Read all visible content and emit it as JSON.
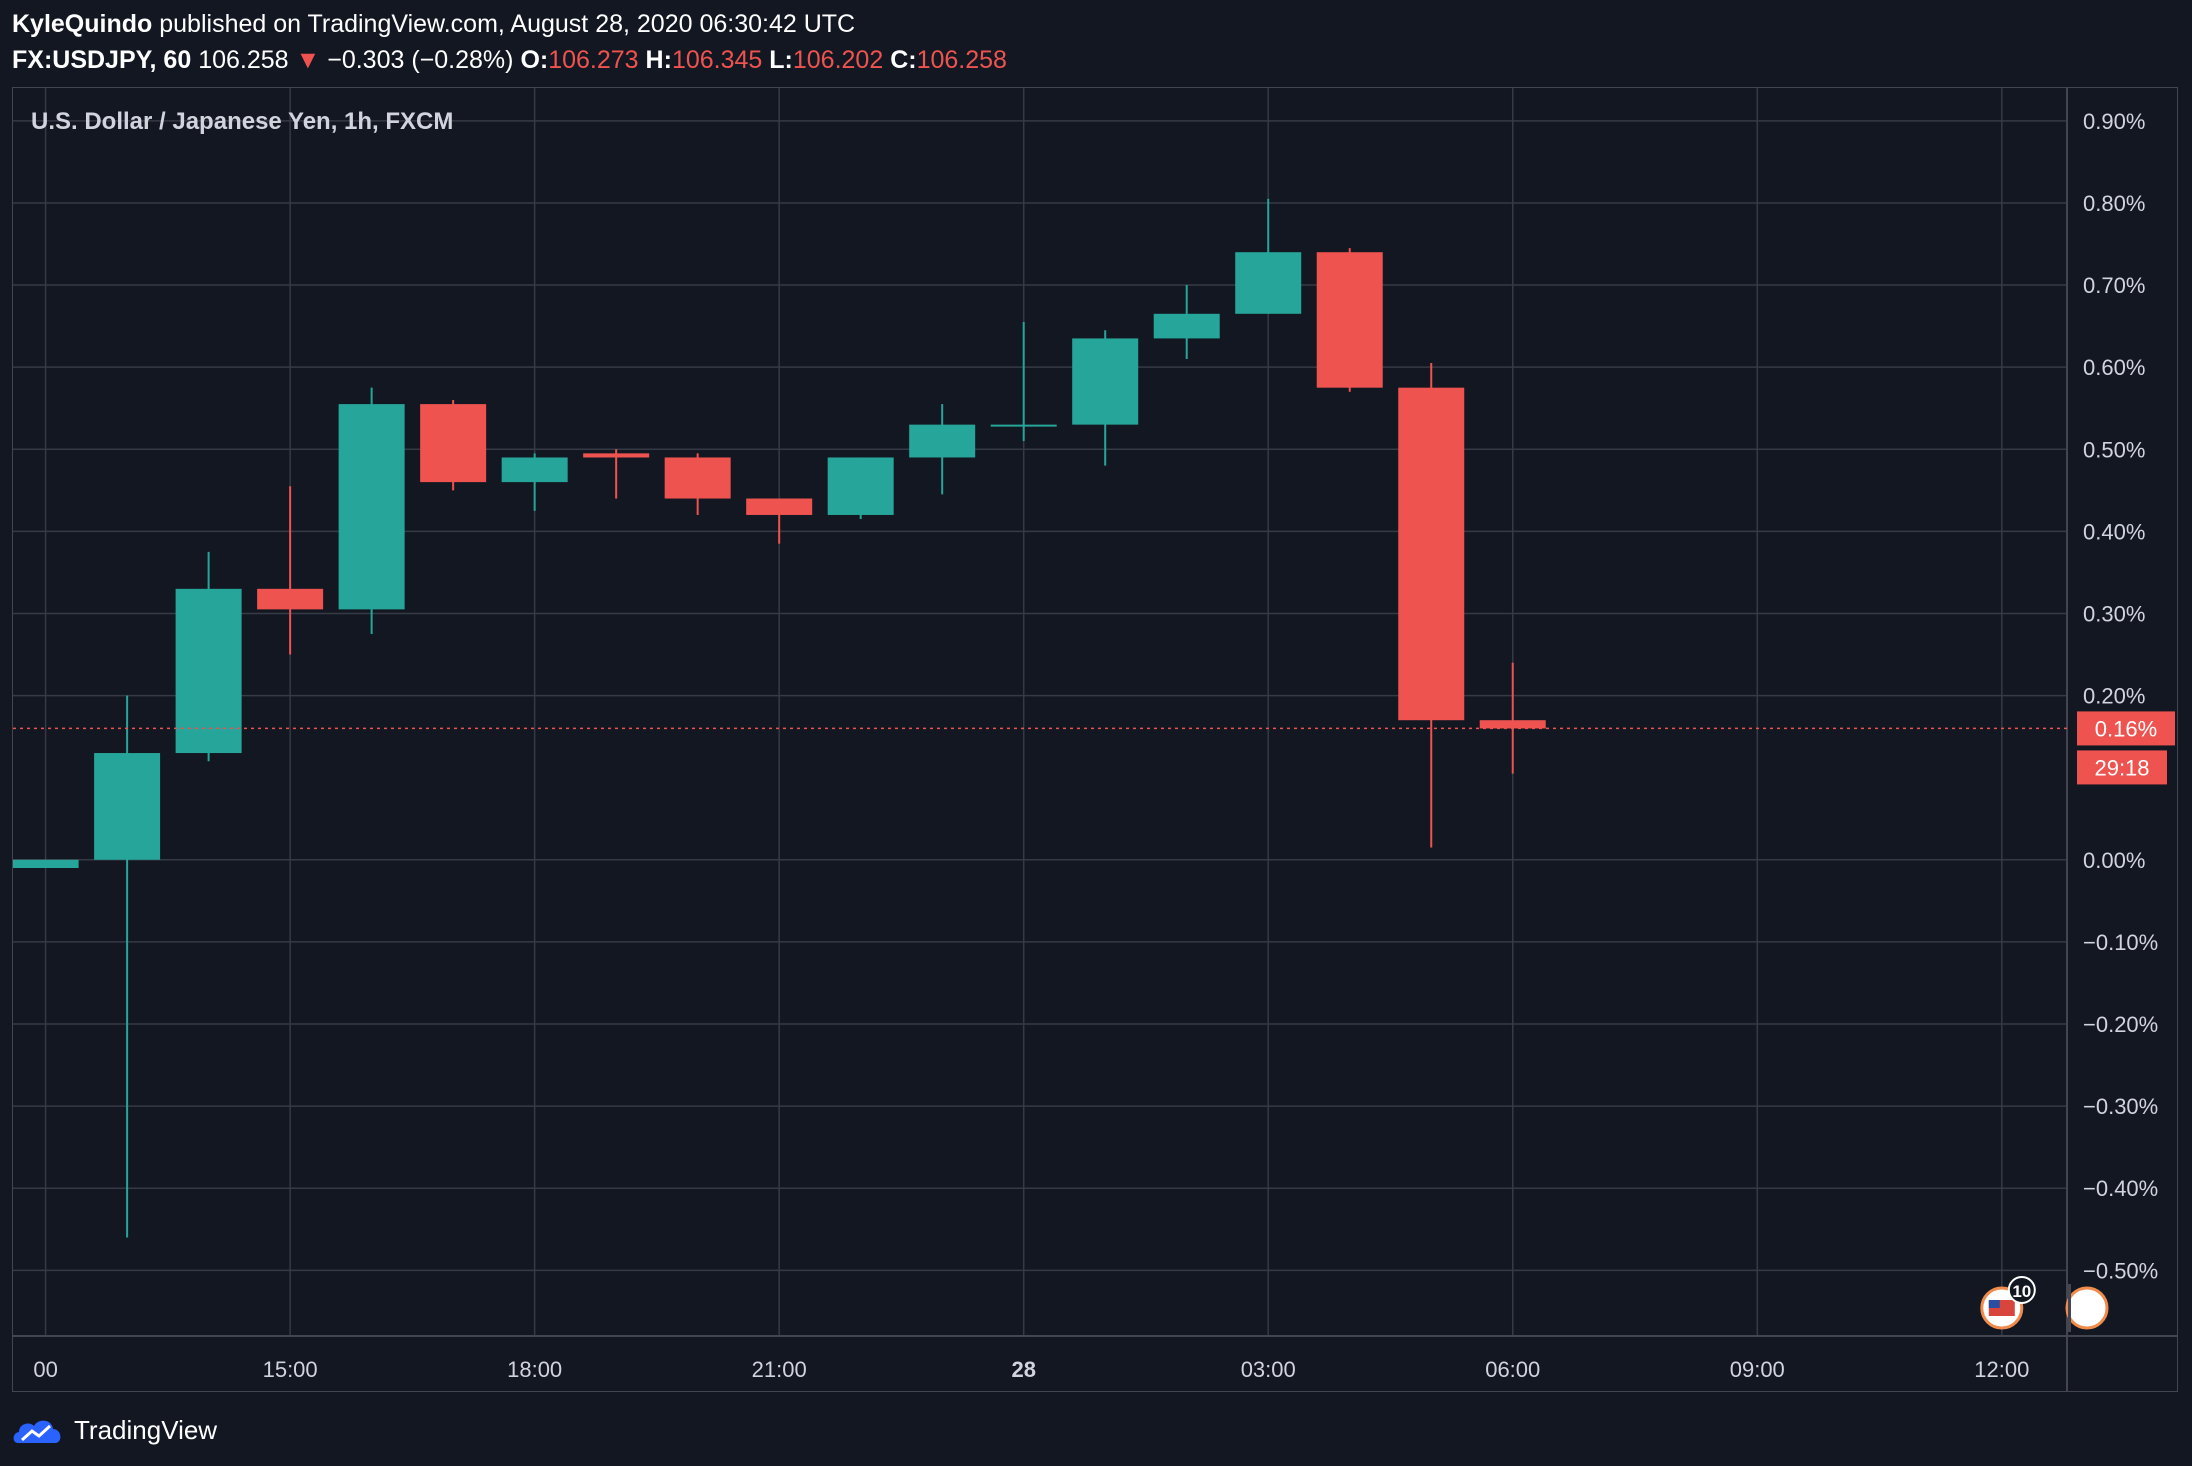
{
  "header": {
    "author": "KyleQuindo",
    "published_text": "published on TradingView.com, August 28, 2020 06:30:42 UTC",
    "symbol": "FX:USDJPY, 60",
    "last_price": "106.258",
    "change_text": "−0.303 (−0.28%)",
    "open_label": "O:",
    "open": "106.273",
    "high_label": "H:",
    "high": "106.345",
    "low_label": "L:",
    "low": "106.202",
    "close_label": "C:",
    "close": "106.258"
  },
  "footer": {
    "brand": "TradingView",
    "logo_icon": "tradingview-cloud-icon"
  },
  "colors": {
    "background": "#131722",
    "grid": "#363a45",
    "up": "#26a69a",
    "down": "#ef5350",
    "text": "#d1d4dc"
  },
  "chart_data": {
    "type": "candlestick",
    "title": "U.S. Dollar / Japanese Yen, 1h, FXCM",
    "y_axis": {
      "unit": "percent",
      "ylim": [
        -0.58,
        0.94
      ],
      "ticks": [
        0.9,
        0.8,
        0.7,
        0.6,
        0.5,
        0.4,
        0.3,
        0.2,
        0.0,
        -0.1,
        -0.2,
        -0.3,
        -0.4,
        -0.5
      ],
      "tick_labels": [
        "0.90%",
        "0.80%",
        "0.70%",
        "0.60%",
        "0.50%",
        "0.40%",
        "0.30%",
        "0.20%",
        "0.00%",
        "−0.10%",
        "−0.20%",
        "−0.30%",
        "−0.40%",
        "−0.50%"
      ],
      "grid": true
    },
    "x_axis": {
      "ticks": [
        {
          "hour": 12,
          "label": "00",
          "bold": false
        },
        {
          "hour": 15,
          "label": "15:00",
          "bold": false
        },
        {
          "hour": 18,
          "label": "18:00",
          "bold": false
        },
        {
          "hour": 21,
          "label": "21:00",
          "bold": false
        },
        {
          "hour": 24,
          "label": "28",
          "bold": true
        },
        {
          "hour": 27,
          "label": "03:00",
          "bold": false
        },
        {
          "hour": 30,
          "label": "06:00",
          "bold": false
        },
        {
          "hour": 33,
          "label": "09:00",
          "bold": false
        },
        {
          "hour": 36,
          "label": "12:00",
          "bold": false
        }
      ],
      "xlim": [
        11.6,
        36.8
      ]
    },
    "candles": [
      {
        "hour": 12,
        "open": -0.01,
        "high": 0.0,
        "low": -0.01,
        "close": 0.0
      },
      {
        "hour": 13,
        "open": 0.0,
        "high": 0.2,
        "low": -0.46,
        "close": 0.13
      },
      {
        "hour": 14,
        "open": 0.13,
        "high": 0.375,
        "low": 0.12,
        "close": 0.33
      },
      {
        "hour": 15,
        "open": 0.33,
        "high": 0.455,
        "low": 0.25,
        "close": 0.305
      },
      {
        "hour": 16,
        "open": 0.305,
        "high": 0.575,
        "low": 0.275,
        "close": 0.555
      },
      {
        "hour": 17,
        "open": 0.555,
        "high": 0.56,
        "low": 0.45,
        "close": 0.46
      },
      {
        "hour": 18,
        "open": 0.46,
        "high": 0.495,
        "low": 0.425,
        "close": 0.49
      },
      {
        "hour": 19,
        "open": 0.495,
        "high": 0.5,
        "low": 0.44,
        "close": 0.49
      },
      {
        "hour": 20,
        "open": 0.49,
        "high": 0.495,
        "low": 0.42,
        "close": 0.44
      },
      {
        "hour": 21,
        "open": 0.44,
        "high": 0.44,
        "low": 0.385,
        "close": 0.42
      },
      {
        "hour": 22,
        "open": 0.42,
        "high": 0.49,
        "low": 0.415,
        "close": 0.49
      },
      {
        "hour": 23,
        "open": 0.49,
        "high": 0.555,
        "low": 0.445,
        "close": 0.53
      },
      {
        "hour": 24,
        "open": 0.53,
        "high": 0.655,
        "low": 0.51,
        "close": 0.53
      },
      {
        "hour": 25,
        "open": 0.53,
        "high": 0.645,
        "low": 0.48,
        "close": 0.635
      },
      {
        "hour": 26,
        "open": 0.635,
        "high": 0.7,
        "low": 0.61,
        "close": 0.665
      },
      {
        "hour": 27,
        "open": 0.665,
        "high": 0.805,
        "low": 0.665,
        "close": 0.74
      },
      {
        "hour": 28,
        "open": 0.74,
        "high": 0.745,
        "low": 0.57,
        "close": 0.575
      },
      {
        "hour": 29,
        "open": 0.575,
        "high": 0.605,
        "low": 0.015,
        "close": 0.17
      },
      {
        "hour": 30,
        "open": 0.17,
        "high": 0.24,
        "low": 0.105,
        "close": 0.16
      }
    ],
    "current_value": {
      "value": 0.16,
      "label": "0.16%",
      "countdown": "29:18"
    },
    "event_marker": {
      "hour": 36,
      "count": "10",
      "icon": "us-flag-icon"
    }
  }
}
